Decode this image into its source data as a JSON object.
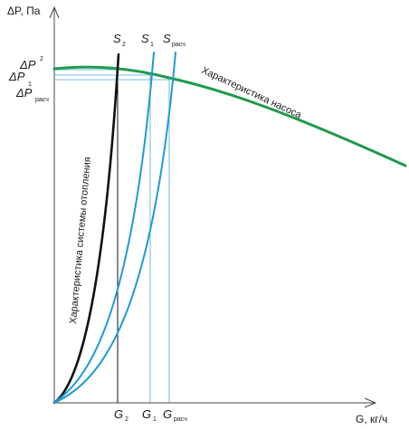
{
  "axes": {
    "y_label": "ΔP, Па",
    "x_label": "G, кг/ч"
  },
  "pressure_levels": [
    {
      "main": "ΔP",
      "sub": "2"
    },
    {
      "main": "ΔP",
      "sub": "1"
    },
    {
      "main": "ΔP",
      "sub": "расч"
    }
  ],
  "flow_rates": [
    {
      "main": "G",
      "sub": "2"
    },
    {
      "main": "G",
      "sub": "1"
    },
    {
      "main": "G",
      "sub": "расч"
    }
  ],
  "system_curves": [
    {
      "main": "S",
      "sub": "2",
      "color": "#111111"
    },
    {
      "main": "S",
      "sub": "1",
      "color": "#1e9ad6"
    },
    {
      "main": "S",
      "sub": "расч",
      "color": "#1e9ad6"
    }
  ],
  "curve_labels": {
    "pump": "Характеристика насоса",
    "system": "Характеристика системы отопления"
  },
  "colors": {
    "pump_curve": "#1f9a4a",
    "system_curve_black": "#111111",
    "system_curve_blue": "#1e9ad6",
    "reference_lines": "#4aa8dc",
    "axes": "#444444"
  }
}
